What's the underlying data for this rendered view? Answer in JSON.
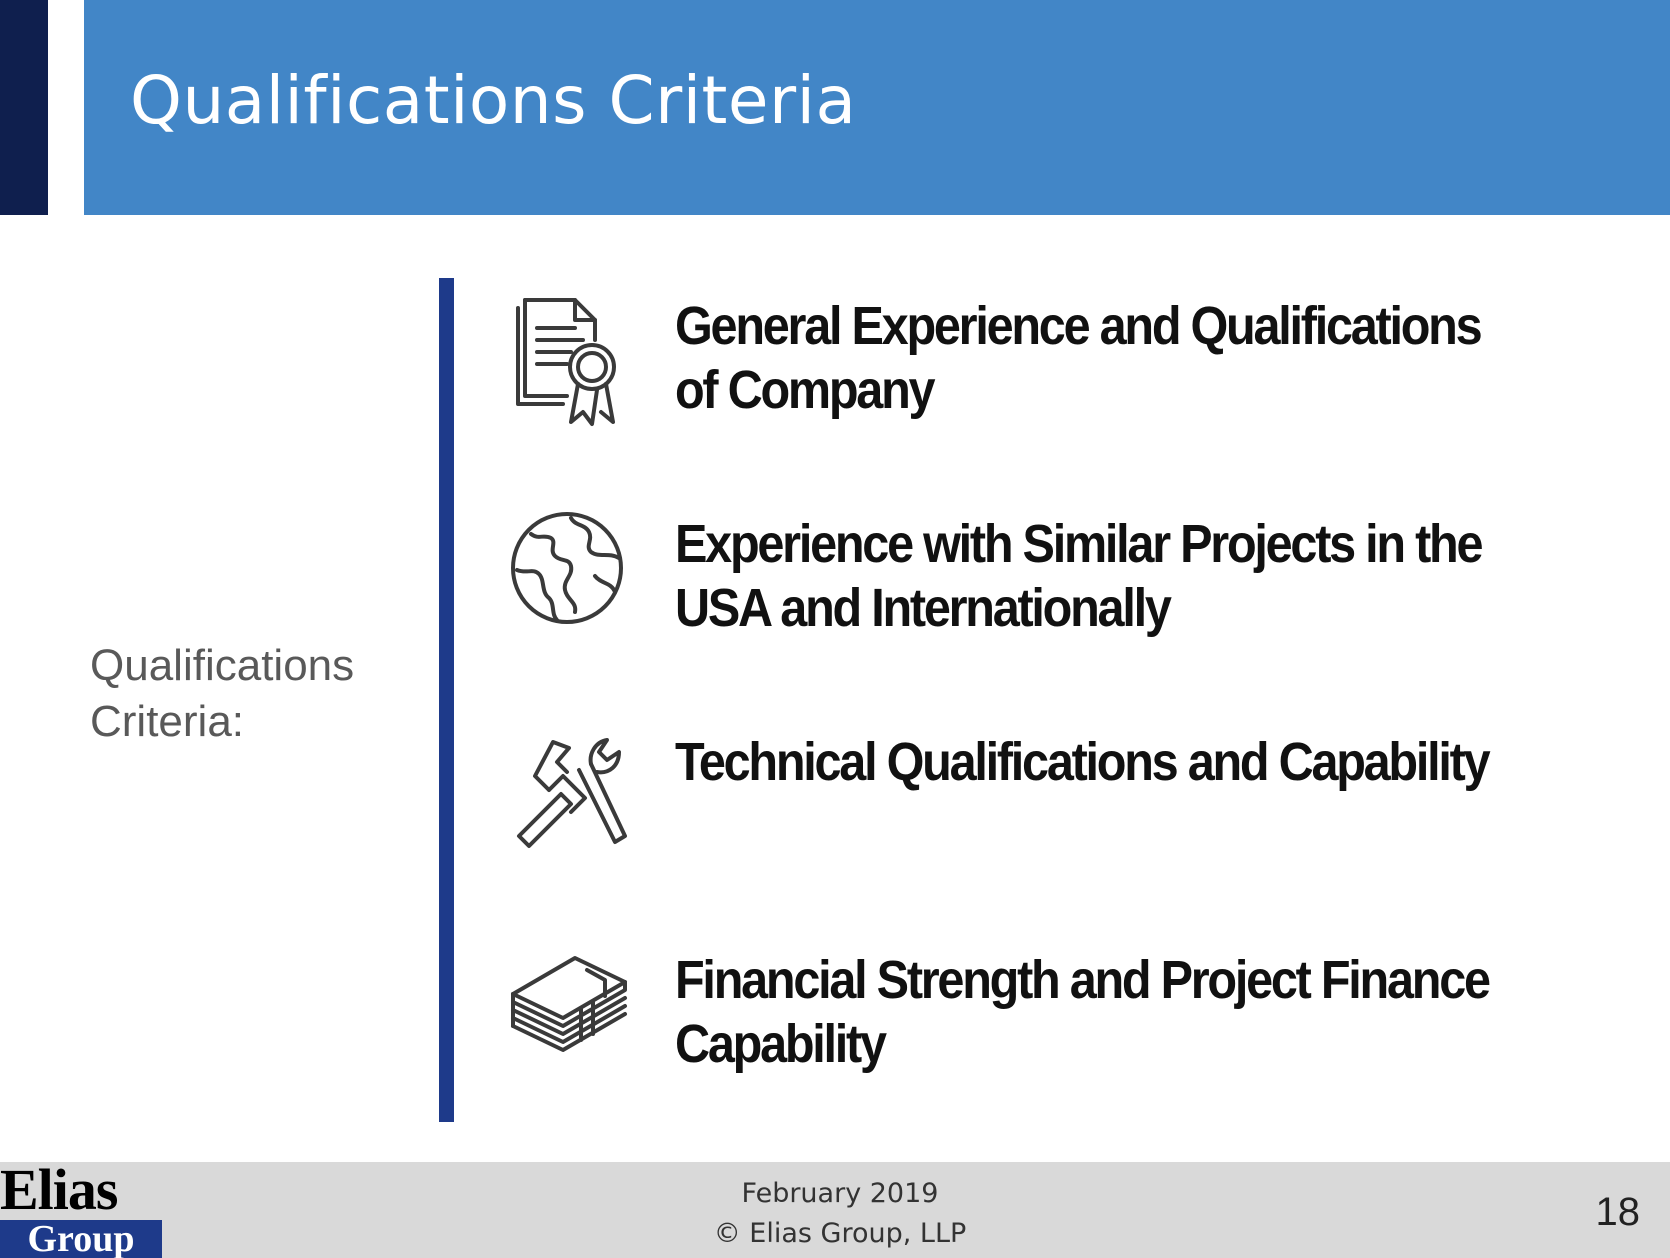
{
  "header": {
    "title": "Qualifications Criteria"
  },
  "sidebar": {
    "label": "Qualifications Criteria:"
  },
  "criteria": [
    {
      "icon": "certificate-icon",
      "text": "General Experience and Qualifications of Company"
    },
    {
      "icon": "globe-icon",
      "text": "Experience with Similar Projects in the USA and Internationally"
    },
    {
      "icon": "hammer-wrench-icon",
      "text": "Technical Qualifications and Capability"
    },
    {
      "icon": "money-stack-icon",
      "text": "Financial Strength and Project Finance Capability"
    }
  ],
  "footer": {
    "logo_top": "Elias",
    "logo_bottom": "Group",
    "date": "February 2019",
    "copyright": "© Elias Group, LLP",
    "page_number": "18"
  },
  "colors": {
    "banner": "#4286c7",
    "accent_dark": "#0f1f4e",
    "divider": "#1e3a8a",
    "footer_bg": "#d9d9d9"
  }
}
